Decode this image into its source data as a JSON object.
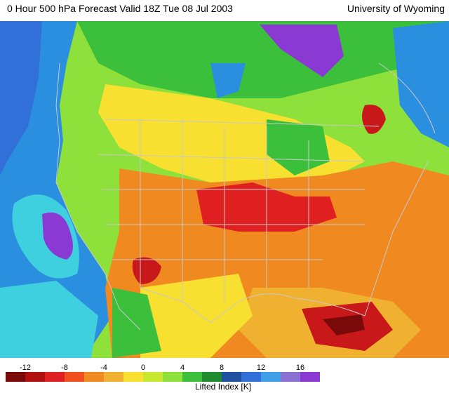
{
  "header": {
    "title": "0 Hour 500 hPa Forecast Valid 18Z Tue 08 Jul 2003",
    "source": "University of Wyoming"
  },
  "map": {
    "variable": "Lifted Index",
    "background_color": "#8ee03a",
    "fields": [
      {
        "name": "pacific-cool",
        "color": "#2b8fe0"
      },
      {
        "name": "pacific-cyan",
        "color": "#3fd0e0"
      },
      {
        "name": "pacific-strong",
        "color": "#8a3ad2"
      },
      {
        "name": "plains-warm",
        "color": "#f08a20"
      },
      {
        "name": "gulf-hot",
        "color": "#c8181a"
      },
      {
        "name": "canada-high",
        "color": "#8a3ad2"
      }
    ],
    "overlays": [
      "coastlines",
      "state-borders",
      "country-borders"
    ]
  },
  "legend": {
    "label": "Lifted Index [K]",
    "ticks": [
      "-12",
      "-8",
      "-4",
      "0",
      "4",
      "8",
      "12",
      "16"
    ],
    "colors": [
      "#7a0a0a",
      "#b01010",
      "#e02020",
      "#f05020",
      "#f08a20",
      "#f0b030",
      "#f8e030",
      "#c8e830",
      "#8ee03a",
      "#3cc03c",
      "#208a30",
      "#2050a0",
      "#3070d8",
      "#3fa0e8",
      "#8a70d0",
      "#8a3ad2"
    ]
  }
}
